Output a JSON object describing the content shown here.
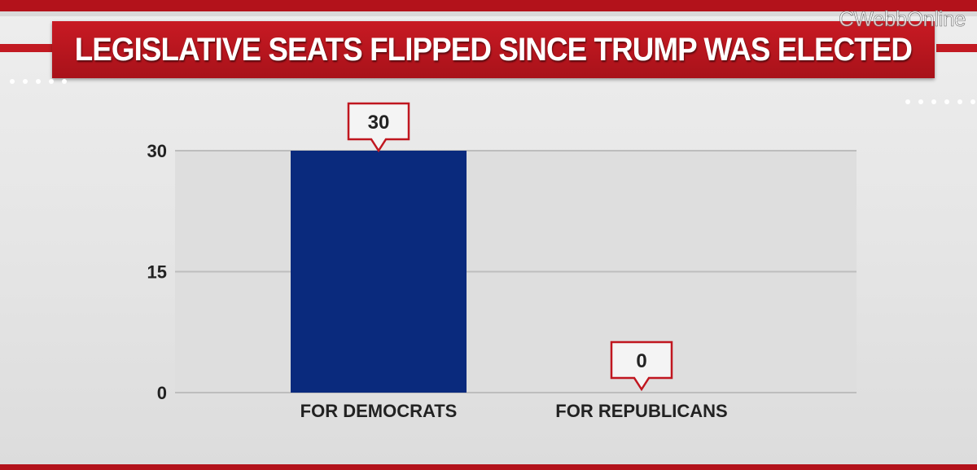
{
  "header": {
    "title": "LEGISLATIVE SEATS FLIPPED SINCE TRUMP WAS ELECTED",
    "watermark": "CWebbOnline"
  },
  "colors": {
    "title_bar": "#b3121b",
    "bar_democrats": "#0a2a7d",
    "callout_border": "#c0161f",
    "plot_background": "#dedede",
    "gridline": "#bdbdbd"
  },
  "chart_data": {
    "type": "bar",
    "categories": [
      "FOR DEMOCRATS",
      "FOR REPUBLICANS"
    ],
    "values": [
      30,
      0
    ],
    "data_labels": [
      "30",
      "0"
    ],
    "title": "LEGISLATIVE SEATS FLIPPED SINCE TRUMP WAS ELECTED",
    "xlabel": "",
    "ylabel": "",
    "ylim": [
      0,
      30
    ],
    "yticks": [
      "0",
      "15",
      "30"
    ],
    "grid": true,
    "legend": "none"
  }
}
